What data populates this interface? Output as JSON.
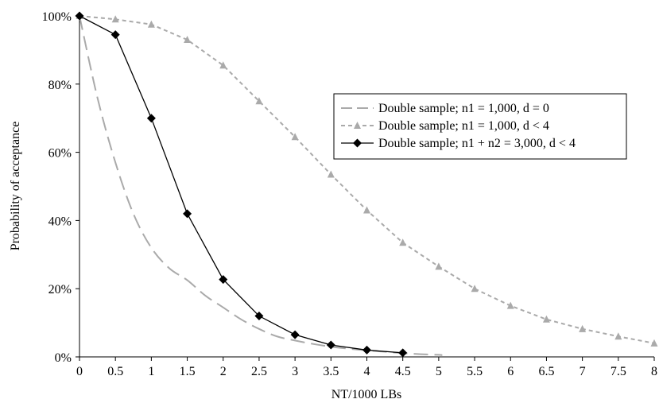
{
  "chart_data": {
    "type": "line",
    "xlabel": "NT/1000 LBs",
    "ylabel": "Probability of acceptance",
    "xlim": [
      0,
      8
    ],
    "ylim": [
      0,
      100
    ],
    "x_ticks": [
      "0",
      "0.5",
      "1",
      "1.5",
      "2",
      "2.5",
      "3",
      "3.5",
      "4",
      "4.5",
      "5",
      "5.5",
      "6",
      "6.5",
      "7",
      "7.5",
      "8"
    ],
    "y_ticks": [
      "0%",
      "20%",
      "40%",
      "60%",
      "80%",
      "100%"
    ],
    "grid": false,
    "legend_position": "right",
    "series": [
      {
        "name": "Double sample; n1 = 1,000, d = 0",
        "style": "long-dash",
        "marker": "none",
        "color": "#aaaaaa",
        "x": [
          0,
          0.25,
          0.5,
          0.75,
          1,
          1.25,
          1.5,
          1.75,
          2,
          2.25,
          2.5,
          2.75,
          3,
          3.25,
          3.5,
          3.75,
          4,
          4.25,
          4.5,
          4.75,
          5,
          5.05
        ],
        "y": [
          100,
          76,
          57,
          42,
          32,
          26,
          22.5,
          18,
          14.5,
          11,
          8.2,
          6,
          4.8,
          3.8,
          3.0,
          2.4,
          1.9,
          1.5,
          1.1,
          0.8,
          0.6,
          0.5
        ]
      },
      {
        "name": "Double sample; n1 = 1,000, d < 4",
        "style": "short-dash",
        "marker": "triangle",
        "color": "#aaaaaa",
        "x": [
          0,
          0.5,
          1,
          1.5,
          2,
          2.5,
          3,
          3.5,
          4,
          4.5,
          5,
          5.5,
          6,
          6.5,
          7,
          7.5,
          8
        ],
        "y": [
          100,
          99,
          97.5,
          93,
          85.5,
          75,
          64.5,
          53.5,
          43,
          33.5,
          26.5,
          20,
          15,
          11,
          8.2,
          6,
          4
        ]
      },
      {
        "name": "Double sample; n1 + n2 = 3,000, d < 4",
        "style": "solid",
        "marker": "diamond",
        "color": "#000000",
        "x": [
          0,
          0.5,
          1,
          1.5,
          2,
          2.5,
          3,
          3.5,
          4,
          4.5
        ],
        "y": [
          100,
          94.5,
          70,
          42,
          22.7,
          12,
          6.5,
          3.5,
          2,
          1.2
        ]
      }
    ]
  }
}
